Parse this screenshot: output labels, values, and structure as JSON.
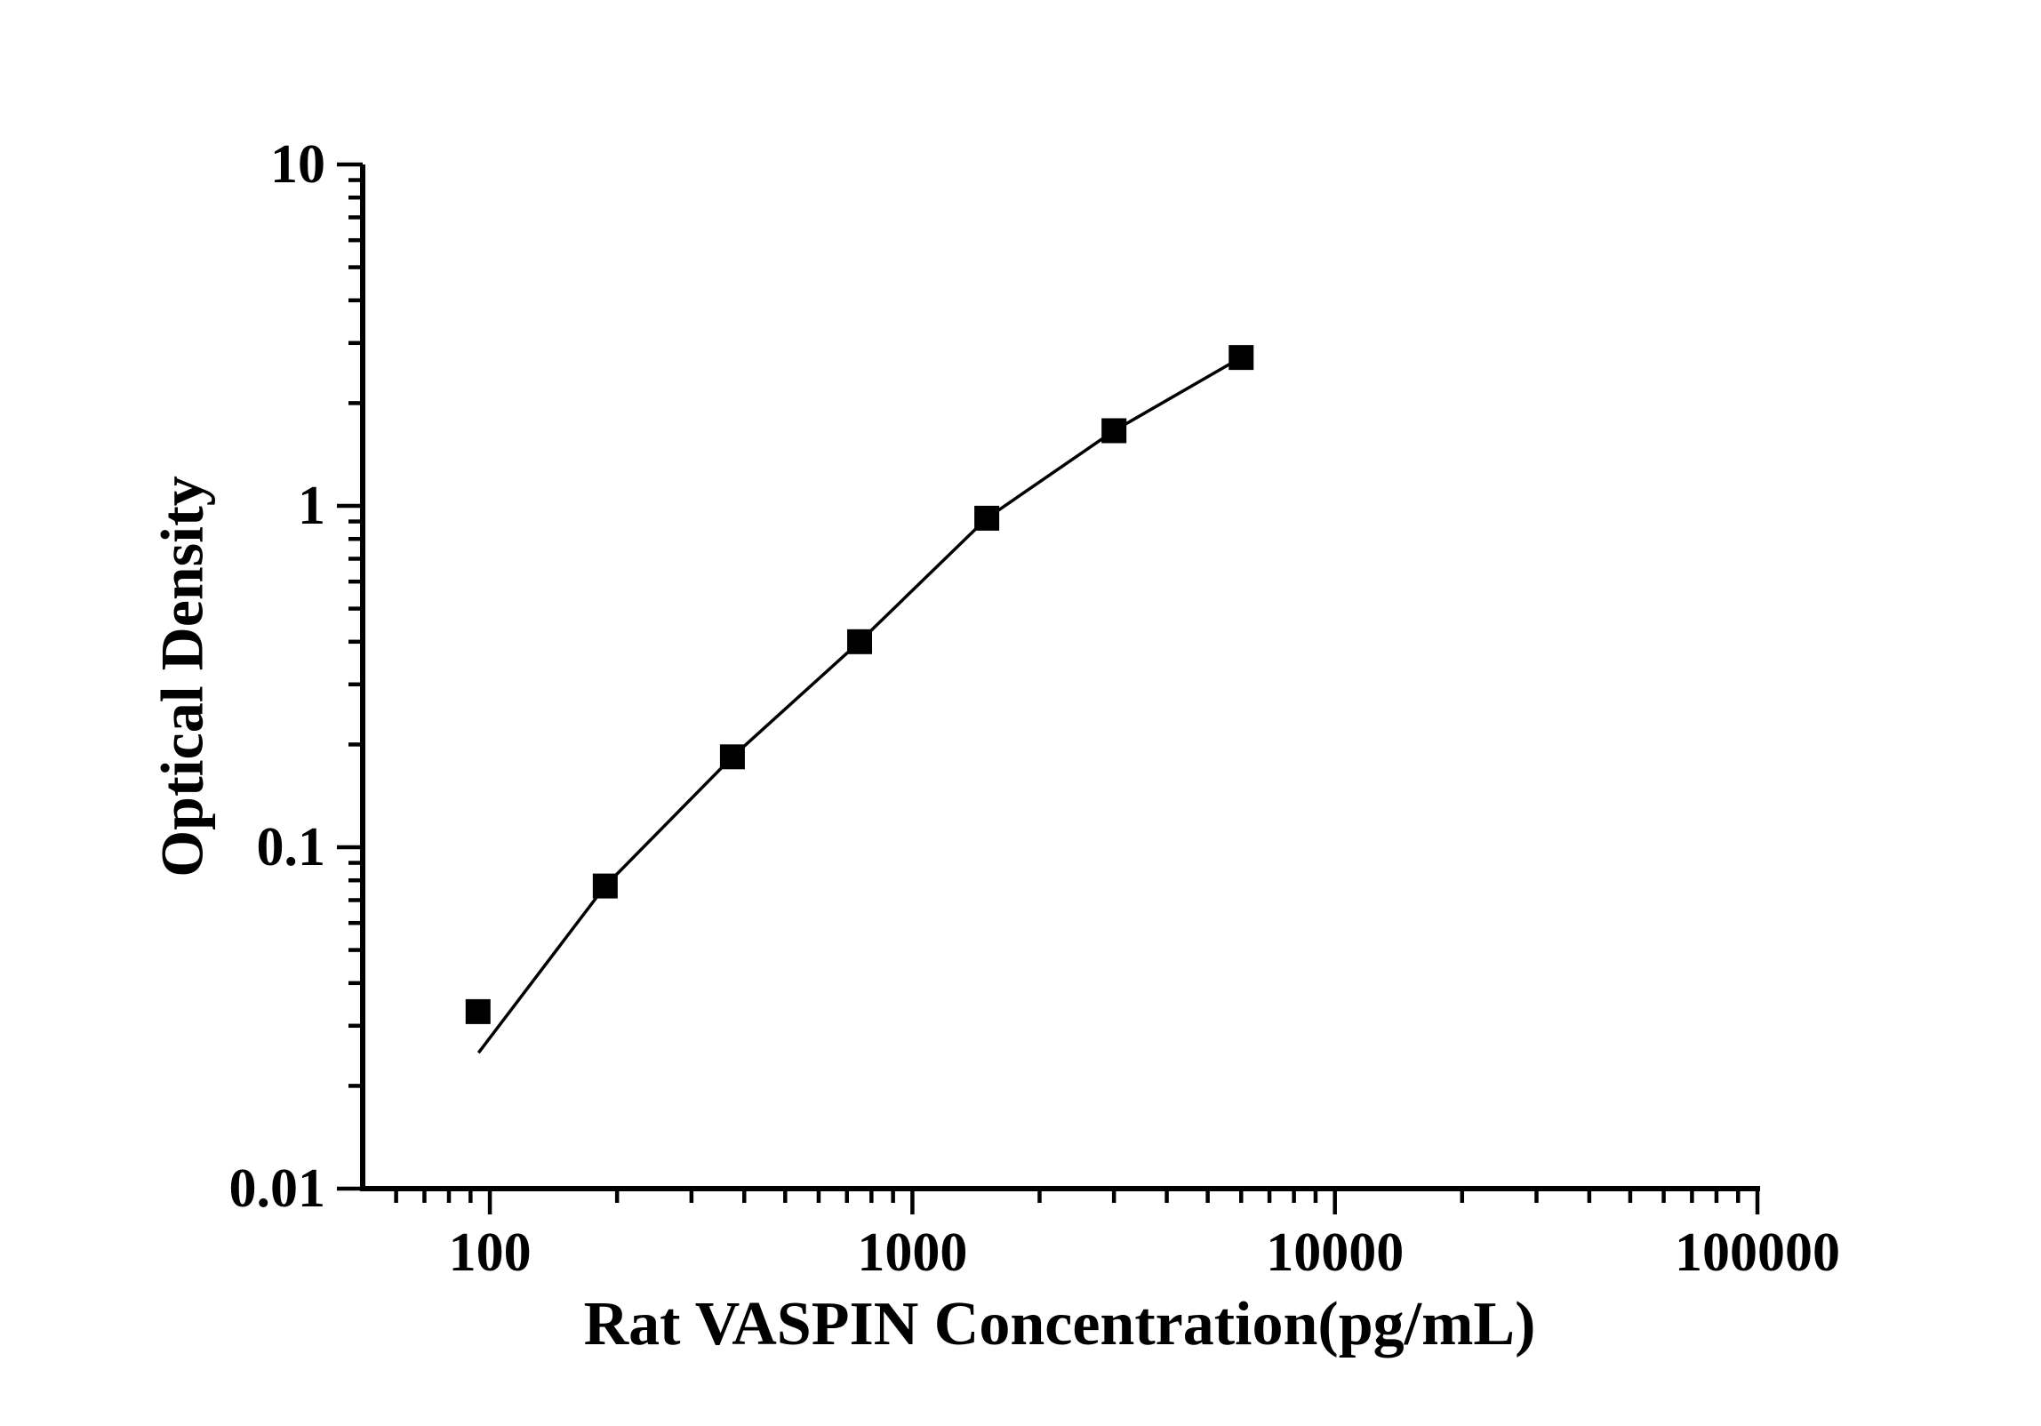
{
  "background": "#ffffff",
  "styles": {
    "axis_color": "#000000",
    "text_color": "#000000",
    "marker_color": "#000000",
    "line_color": "#000000"
  },
  "chart_data": {
    "type": "line",
    "title": "",
    "xlabel": "Rat VASPIN Concentration(pg/mL)",
    "ylabel": "Optical Density",
    "xscale": "log",
    "yscale": "log",
    "xlim": [
      50,
      100000
    ],
    "ylim": [
      0.01,
      10
    ],
    "grid": false,
    "legend": false,
    "x_ticks": {
      "values": [
        100,
        1000,
        10000,
        100000
      ],
      "labels": [
        "100",
        "1000",
        "10000",
        "100000"
      ]
    },
    "y_ticks": {
      "values": [
        10,
        1,
        0.1,
        0.01
      ],
      "labels": [
        "10",
        "1",
        "0.1",
        "0.01"
      ]
    },
    "minor_ticks": true,
    "series": [
      {
        "name": "standard-curve-points",
        "marker": "square",
        "x": [
          93.75,
          187.5,
          375,
          750,
          1500,
          3000,
          6000
        ],
        "y": [
          0.033,
          0.077,
          0.184,
          0.4,
          0.92,
          1.66,
          2.72
        ]
      }
    ],
    "fit_line": {
      "name": "fitted-curve",
      "x": [
        94,
        187.5,
        375,
        750,
        1500,
        3000,
        6000
      ],
      "y": [
        0.025,
        0.077,
        0.184,
        0.4,
        0.92,
        1.66,
        2.72
      ]
    }
  }
}
